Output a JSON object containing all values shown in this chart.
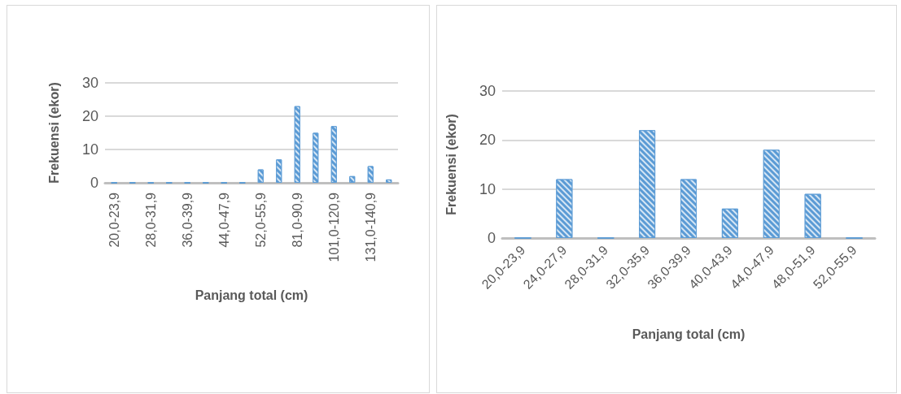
{
  "chart_data": [
    {
      "type": "bar",
      "xlabel": "Panjang total (cm)",
      "ylabel": "Frekuensi (ekor)",
      "categories": [
        "20,0-23,9",
        null,
        "28,0-31,9",
        null,
        "36,0-39,9",
        null,
        "44,0-47,9",
        null,
        "52,0-55,9",
        null,
        "81,0-90,9",
        null,
        "101,0-120,9",
        null,
        "131,0-140,9",
        null
      ],
      "values": [
        0,
        0,
        0,
        0,
        0,
        0,
        0,
        0,
        4,
        7,
        23,
        15,
        17,
        2,
        5,
        1
      ],
      "color": "#5b9bd5",
      "ylim": [
        0,
        30
      ],
      "yticks": [
        0,
        10,
        20,
        30
      ],
      "grid": "y"
    },
    {
      "type": "bar",
      "xlabel": "Panjang total (cm)",
      "ylabel": "Frekuensi (ekor)",
      "categories": [
        "20,0-23,9",
        "24,0-27,9",
        "28,0-31,9",
        "32,0-35,9",
        "36,0-39,9",
        "40,0-43,9",
        "44,0-47,9",
        "48,0-51,9",
        "52,0-55,9"
      ],
      "values": [
        0,
        12,
        0,
        22,
        12,
        6,
        18,
        9,
        0
      ],
      "color": "#5b9bd5",
      "ylim": [
        0,
        30
      ],
      "yticks": [
        0,
        10,
        20,
        30
      ],
      "grid": "y"
    }
  ]
}
